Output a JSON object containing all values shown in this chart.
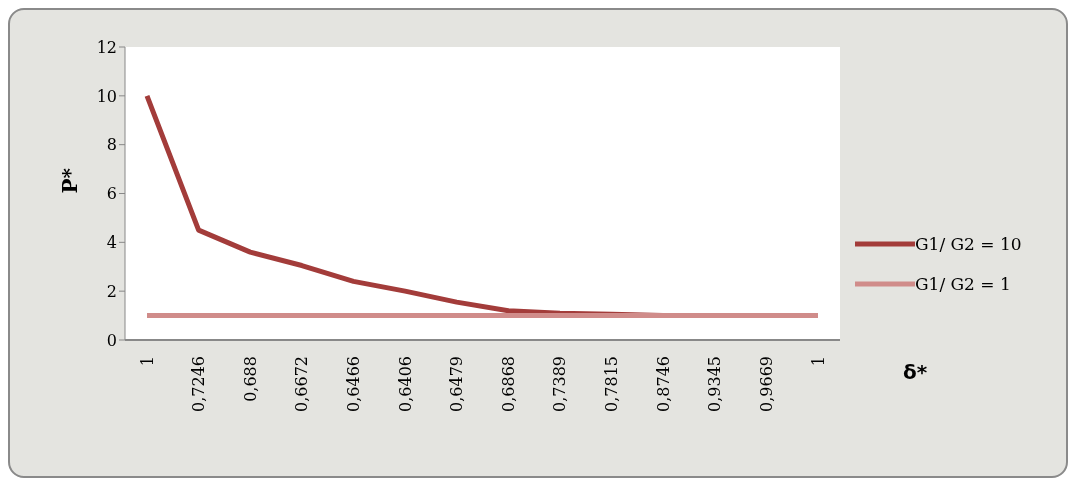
{
  "chart_data": {
    "type": "line",
    "xlabel": "δ*",
    "ylabel": "P*",
    "categories": [
      "1",
      "0,7246",
      "0,688",
      "0,6672",
      "0,6466",
      "0,6406",
      "0,6479",
      "0,6868",
      "0,7389",
      "0,7815",
      "0,8746",
      "0,9345",
      "0,9669",
      "1"
    ],
    "series": [
      {
        "name": "G1/ G2 = 10",
        "color": "#a33c3a",
        "values": [
          10,
          4.5,
          3.6,
          3.05,
          2.4,
          2.0,
          1.55,
          1.2,
          1.1,
          1.05,
          1.0,
          1.0,
          1.0,
          1.0
        ]
      },
      {
        "name": "G1/ G2 = 1",
        "color": "#d08c8a",
        "values": [
          1,
          1,
          1,
          1,
          1,
          1,
          1,
          1,
          1,
          1,
          1,
          1,
          1,
          1
        ]
      }
    ],
    "ylim": [
      0,
      12
    ],
    "yticks": [
      0,
      2,
      4,
      6,
      8,
      10,
      12
    ],
    "grid": false,
    "legend": "right",
    "marker": "none",
    "line_style": "solid"
  }
}
